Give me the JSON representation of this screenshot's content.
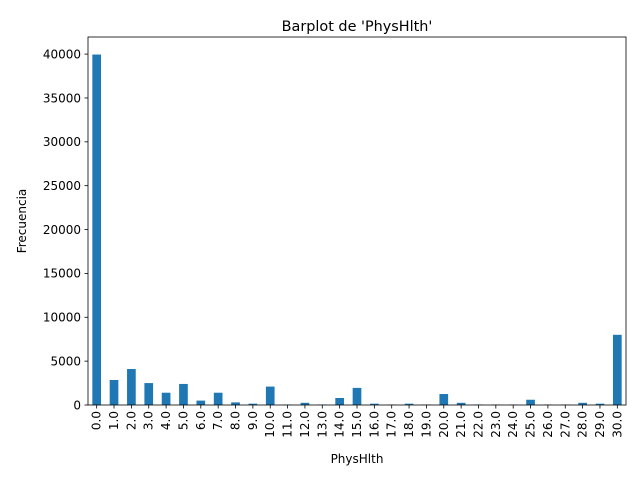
{
  "chart_data": {
    "type": "bar",
    "title": "Barplot de 'PhysHlth'",
    "xlabel": "PhysHlth",
    "ylabel": "Frecuencia",
    "categories": [
      "0.0",
      "1.0",
      "2.0",
      "3.0",
      "4.0",
      "5.0",
      "6.0",
      "7.0",
      "8.0",
      "9.0",
      "10.0",
      "11.0",
      "12.0",
      "13.0",
      "14.0",
      "15.0",
      "16.0",
      "17.0",
      "18.0",
      "19.0",
      "20.0",
      "21.0",
      "22.0",
      "23.0",
      "24.0",
      "25.0",
      "26.0",
      "27.0",
      "28.0",
      "29.0",
      "30.0"
    ],
    "values": [
      39950,
      2850,
      4100,
      2500,
      1400,
      2400,
      500,
      1400,
      300,
      150,
      2100,
      50,
      250,
      50,
      800,
      1950,
      150,
      50,
      150,
      50,
      1250,
      250,
      50,
      50,
      50,
      600,
      50,
      50,
      250,
      150,
      8000
    ],
    "yticks": [
      0,
      5000,
      10000,
      15000,
      20000,
      25000,
      30000,
      35000,
      40000
    ],
    "ylim": [
      0,
      41950
    ],
    "bar_color": "#1f77b4",
    "grid": false,
    "legend": "none"
  }
}
